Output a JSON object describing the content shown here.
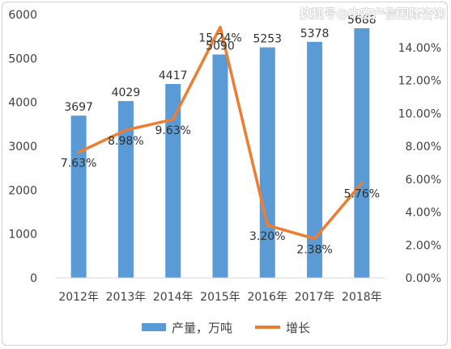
{
  "chart_data": {
    "type": "bar",
    "categories": [
      "2012年",
      "2013年",
      "2014年",
      "2015年",
      "2016年",
      "2017年",
      "2018年"
    ],
    "series": [
      {
        "name": "产量，万吨",
        "type": "bar",
        "axis": "left",
        "values": [
          3697,
          4029,
          4417,
          5090,
          5253,
          5378,
          5688
        ]
      },
      {
        "name": "增长",
        "type": "line",
        "axis": "right",
        "values": [
          7.63,
          8.98,
          9.63,
          15.24,
          3.2,
          2.38,
          5.76
        ]
      }
    ],
    "bar_labels": [
      "3697",
      "4029",
      "4417",
      "5090",
      "5253",
      "5378",
      "5688"
    ],
    "line_labels": [
      "7.63%",
      "8.98%",
      "9.63%",
      "15.24%",
      "3.20%",
      "2.38%",
      "5.76%"
    ],
    "y_left": {
      "ticks": [
        "0",
        "1000",
        "2000",
        "3000",
        "4000",
        "5000",
        "6000"
      ],
      "ylim": [
        0,
        6000
      ]
    },
    "y_right": {
      "ticks": [
        "0.00%",
        "2.00%",
        "4.00%",
        "6.00%",
        "8.00%",
        "10.00%",
        "12.00%",
        "14.00%"
      ],
      "ylim": [
        0,
        16
      ]
    },
    "legend_position": "bottom",
    "grid": false,
    "colors": {
      "bar": "#5b9bd5",
      "line": "#ed7d31"
    }
  },
  "watermark": "搜狐号@中宏产信国际咨询"
}
